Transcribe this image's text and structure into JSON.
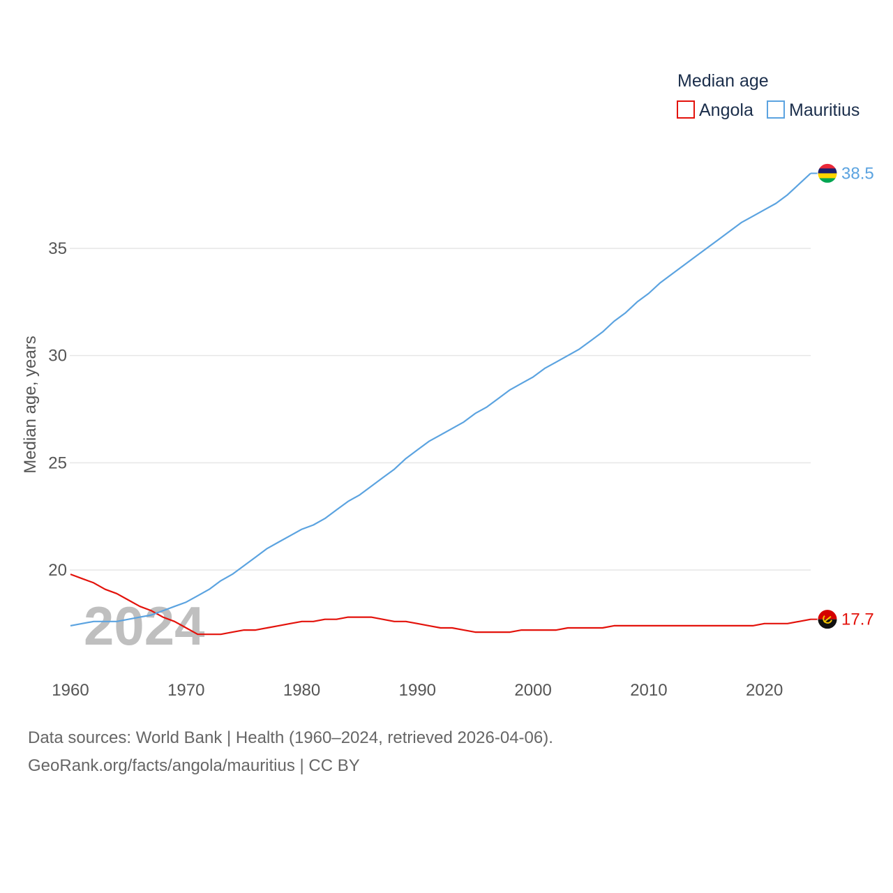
{
  "chart_data": {
    "type": "line",
    "title": "Median age",
    "ylabel": "Median age, years",
    "xlabel": "",
    "current_year": "2024",
    "xlim": [
      1960,
      2024
    ],
    "ylim": [
      16,
      39.8
    ],
    "y_ticks": [
      20,
      25,
      30,
      35
    ],
    "x_ticks": [
      1960,
      1970,
      1980,
      1990,
      2000,
      2010,
      2020
    ],
    "grid": true,
    "legend_position": "top-right",
    "series": [
      {
        "name": "Angola",
        "color": "#e3120b",
        "end_value_label": "17.7",
        "flag_icon": "angola-flag-icon",
        "x": [
          1960,
          1961,
          1962,
          1963,
          1964,
          1965,
          1966,
          1967,
          1968,
          1969,
          1970,
          1971,
          1972,
          1973,
          1974,
          1975,
          1976,
          1977,
          1978,
          1979,
          1980,
          1981,
          1982,
          1983,
          1984,
          1985,
          1986,
          1987,
          1988,
          1989,
          1990,
          1991,
          1992,
          1993,
          1994,
          1995,
          1996,
          1997,
          1998,
          1999,
          2000,
          2001,
          2002,
          2003,
          2004,
          2005,
          2006,
          2007,
          2008,
          2009,
          2010,
          2011,
          2012,
          2013,
          2014,
          2015,
          2016,
          2017,
          2018,
          2019,
          2020,
          2021,
          2022,
          2023,
          2024
        ],
        "values": [
          19.8,
          19.6,
          19.4,
          19.1,
          18.9,
          18.6,
          18.3,
          18.1,
          17.8,
          17.6,
          17.3,
          17.0,
          17.0,
          17.0,
          17.1,
          17.2,
          17.2,
          17.3,
          17.4,
          17.5,
          17.6,
          17.6,
          17.7,
          17.7,
          17.8,
          17.8,
          17.8,
          17.7,
          17.6,
          17.6,
          17.5,
          17.4,
          17.3,
          17.3,
          17.2,
          17.1,
          17.1,
          17.1,
          17.1,
          17.2,
          17.2,
          17.2,
          17.2,
          17.3,
          17.3,
          17.3,
          17.3,
          17.4,
          17.4,
          17.4,
          17.4,
          17.4,
          17.4,
          17.4,
          17.4,
          17.4,
          17.4,
          17.4,
          17.4,
          17.4,
          17.5,
          17.5,
          17.5,
          17.6,
          17.7
        ]
      },
      {
        "name": "Mauritius",
        "color": "#5ba3e0",
        "end_value_label": "38.5",
        "flag_icon": "mauritius-flag-icon",
        "x": [
          1960,
          1961,
          1962,
          1963,
          1964,
          1965,
          1966,
          1967,
          1968,
          1969,
          1970,
          1971,
          1972,
          1973,
          1974,
          1975,
          1976,
          1977,
          1978,
          1979,
          1980,
          1981,
          1982,
          1983,
          1984,
          1985,
          1986,
          1987,
          1988,
          1989,
          1990,
          1991,
          1992,
          1993,
          1994,
          1995,
          1996,
          1997,
          1998,
          1999,
          2000,
          2001,
          2002,
          2003,
          2004,
          2005,
          2006,
          2007,
          2008,
          2009,
          2010,
          2011,
          2012,
          2013,
          2014,
          2015,
          2016,
          2017,
          2018,
          2019,
          2020,
          2021,
          2022,
          2023,
          2024
        ],
        "values": [
          17.4,
          17.5,
          17.6,
          17.6,
          17.6,
          17.7,
          17.8,
          17.9,
          18.1,
          18.3,
          18.5,
          18.8,
          19.1,
          19.5,
          19.8,
          20.2,
          20.6,
          21.0,
          21.3,
          21.6,
          21.9,
          22.1,
          22.4,
          22.8,
          23.2,
          23.5,
          23.9,
          24.3,
          24.7,
          25.2,
          25.6,
          26.0,
          26.3,
          26.6,
          26.9,
          27.3,
          27.6,
          28.0,
          28.4,
          28.7,
          29.0,
          29.4,
          29.7,
          30.0,
          30.3,
          30.7,
          31.1,
          31.6,
          32.0,
          32.5,
          32.9,
          33.4,
          33.8,
          34.2,
          34.6,
          35.0,
          35.4,
          35.8,
          36.2,
          36.5,
          36.8,
          37.1,
          37.5,
          38.0,
          38.5
        ]
      }
    ]
  },
  "source": {
    "line1": "Data sources: World Bank | Health (1960–2024, retrieved 2026-04-06).",
    "line2": "GeoRank.org/facts/angola/mauritius | CC BY"
  }
}
